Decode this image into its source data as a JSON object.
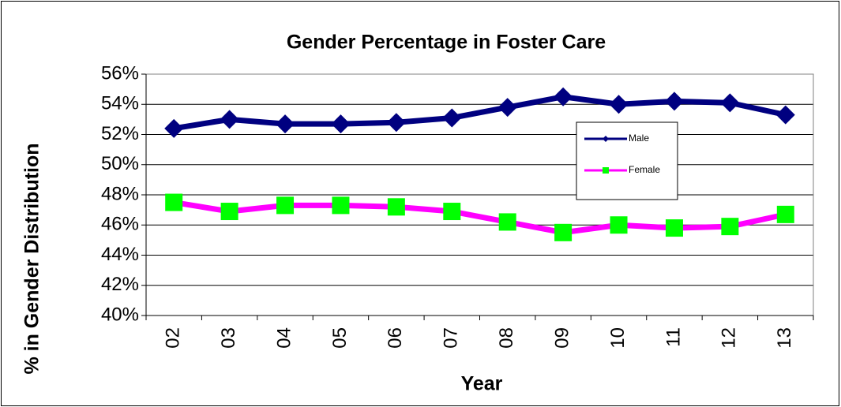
{
  "chart_data": {
    "type": "line",
    "title": "Gender Percentage in Foster Care",
    "x_label": "Year",
    "y_label": "% in Gender Distribution",
    "categories": [
      "02",
      "03",
      "04",
      "05",
      "06",
      "07",
      "08",
      "09",
      "10",
      "11",
      "12",
      "13"
    ],
    "series": [
      {
        "name": "Male",
        "color": "#000080",
        "marker": "diamond",
        "marker_color": "#000080",
        "values": [
          52.4,
          53.0,
          52.7,
          52.7,
          52.8,
          53.1,
          53.8,
          54.5,
          54.0,
          54.2,
          54.1,
          53.3
        ]
      },
      {
        "name": "Female",
        "color": "#ff00ff",
        "marker": "square",
        "marker_color": "#00ff00",
        "values": [
          47.5,
          46.9,
          47.3,
          47.3,
          47.2,
          46.9,
          46.2,
          45.5,
          46.0,
          45.8,
          45.9,
          46.7
        ]
      }
    ],
    "ylim": [
      40,
      56
    ],
    "yticks": [
      {
        "value": 40,
        "label": "40%"
      },
      {
        "value": 42,
        "label": "42%"
      },
      {
        "value": 44,
        "label": "44%"
      },
      {
        "value": 46,
        "label": "46%"
      },
      {
        "value": 48,
        "label": "48%"
      },
      {
        "value": 50,
        "label": "50%"
      },
      {
        "value": 52,
        "label": "52%"
      },
      {
        "value": 54,
        "label": "54%"
      },
      {
        "value": 56,
        "label": "56%"
      }
    ],
    "grid": true,
    "legend": "right"
  }
}
